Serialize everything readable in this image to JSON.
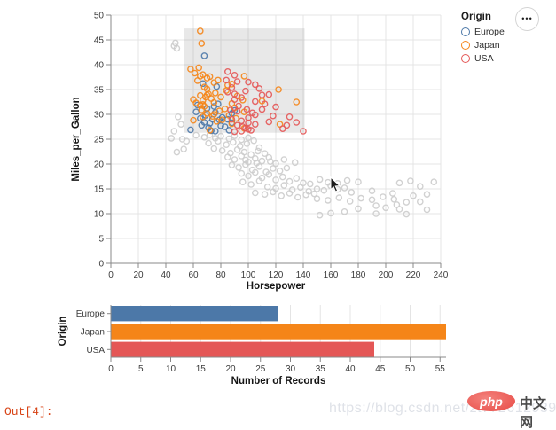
{
  "notebook": {
    "out_prompt": "Out[4]:"
  },
  "legend": {
    "title": "Origin",
    "items": [
      {
        "label": "Europe",
        "color": "#4c78a8"
      },
      {
        "label": "Japan",
        "color": "#f58518"
      },
      {
        "label": "USA",
        "color": "#e45756"
      }
    ]
  },
  "actions_button": {
    "glyph": "•••"
  },
  "watermark": {
    "url": "https://blog.csdn.net/zt772612939",
    "logo_text": "php",
    "site_text": "中文网"
  },
  "colors": {
    "europe": "#4c78a8",
    "japan": "#f58518",
    "usa": "#e45756",
    "unselected": "#cccccc",
    "grid": "#e4e4e4",
    "axis": "#888888",
    "brush_fill": "rgba(128,128,128,0.18)"
  },
  "chart_data": [
    {
      "type": "scatter",
      "xlabel": "Horsepower",
      "ylabel": "Miles_per_Gallon",
      "xlim": [
        0,
        240
      ],
      "ylim": [
        0,
        50
      ],
      "xticks": [
        0,
        20,
        40,
        60,
        80,
        100,
        120,
        140,
        160,
        180,
        200,
        220,
        240
      ],
      "yticks": [
        0,
        5,
        10,
        15,
        20,
        25,
        30,
        35,
        40,
        45,
        50
      ],
      "grid": true,
      "legend_position": "top-right",
      "brush_selection": {
        "x": [
          53,
          141
        ],
        "y": [
          26.3,
          47.3
        ]
      },
      "series": [
        {
          "name": "unselected",
          "color": "#cccccc",
          "points": [
            [
              46,
              43.8
            ],
            [
              47,
              44.4
            ],
            [
              48,
              43.3
            ],
            [
              46,
              26.6
            ],
            [
              44,
              25.2
            ],
            [
              52,
              25.0
            ],
            [
              55,
              24.6
            ],
            [
              48,
              22.4
            ],
            [
              53,
              23.0
            ],
            [
              51,
              28.0
            ],
            [
              49,
              29.5
            ],
            [
              62,
              25.8
            ],
            [
              68,
              25.4
            ],
            [
              72,
              25.9
            ],
            [
              76,
              25.2
            ],
            [
              80,
              25.6
            ],
            [
              86,
              25.1
            ],
            [
              90,
              25.7
            ],
            [
              95,
              24.9
            ],
            [
              100,
              25.3
            ],
            [
              71,
              24.2
            ],
            [
              78,
              24.6
            ],
            [
              84,
              23.9
            ],
            [
              89,
              24.4
            ],
            [
              94,
              23.6
            ],
            [
              99,
              24.1
            ],
            [
              104,
              24.7
            ],
            [
              108,
              23.3
            ],
            [
              75,
              23.1
            ],
            [
              81,
              22.7
            ],
            [
              87,
              22.2
            ],
            [
              92,
              22.9
            ],
            [
              97,
              22.4
            ],
            [
              102,
              21.9
            ],
            [
              107,
              22.6
            ],
            [
              112,
              22.1
            ],
            [
              85,
              21.4
            ],
            [
              90,
              20.9
            ],
            [
              95,
              21.6
            ],
            [
              100,
              20.4
            ],
            [
              105,
              21.1
            ],
            [
              110,
              20.6
            ],
            [
              115,
              21.3
            ],
            [
              120,
              20.1
            ],
            [
              88,
              19.8
            ],
            [
              93,
              19.3
            ],
            [
              98,
              19.9
            ],
            [
              103,
              18.8
            ],
            [
              108,
              19.5
            ],
            [
              113,
              18.4
            ],
            [
              118,
              19.1
            ],
            [
              123,
              18.6
            ],
            [
              128,
              19.2
            ],
            [
              95,
              18.1
            ],
            [
              100,
              17.6
            ],
            [
              105,
              18.3
            ],
            [
              110,
              17.2
            ],
            [
              115,
              17.9
            ],
            [
              120,
              16.8
            ],
            [
              125,
              17.4
            ],
            [
              130,
              16.5
            ],
            [
              135,
              17.1
            ],
            [
              140,
              16.2
            ],
            [
              96,
              16.4
            ],
            [
              102,
              15.9
            ],
            [
              108,
              16.6
            ],
            [
              114,
              15.4
            ],
            [
              120,
              15.1
            ],
            [
              126,
              15.7
            ],
            [
              132,
              14.8
            ],
            [
              138,
              15.3
            ],
            [
              144,
              14.5
            ],
            [
              150,
              15.0
            ],
            [
              105,
              14.2
            ],
            [
              112,
              13.9
            ],
            [
              118,
              14.4
            ],
            [
              124,
              13.6
            ],
            [
              130,
              14.1
            ],
            [
              136,
              13.3
            ],
            [
              142,
              13.8
            ],
            [
              148,
              14.0
            ],
            [
              98,
              20.8
            ],
            [
              106,
              20.2
            ],
            [
              116,
              20.5
            ],
            [
              126,
              20.9
            ],
            [
              134,
              20.3
            ],
            [
              145,
              16.0
            ],
            [
              152,
              16.9
            ],
            [
              158,
              16.3
            ],
            [
              155,
              14.7
            ],
            [
              160,
              15.6
            ],
            [
              165,
              14.9
            ],
            [
              170,
              15.2
            ],
            [
              175,
              14.3
            ],
            [
              165,
              16.1
            ],
            [
              172,
              16.7
            ],
            [
              180,
              16.4
            ],
            [
              150,
              13.0
            ],
            [
              158,
              12.7
            ],
            [
              166,
              13.2
            ],
            [
              174,
              12.5
            ],
            [
              182,
              13.1
            ],
            [
              190,
              12.8
            ],
            [
              198,
              13.4
            ],
            [
              206,
              12.9
            ],
            [
              193,
              11.6
            ],
            [
              200,
              11.2
            ],
            [
              208,
              11.8
            ],
            [
              215,
              12.3
            ],
            [
              220,
              13.6
            ],
            [
              225,
              12.4
            ],
            [
              230,
              13.9
            ],
            [
              235,
              16.4
            ],
            [
              210,
              16.2
            ],
            [
              218,
              16.6
            ],
            [
              205,
              14.1
            ],
            [
              190,
              14.6
            ],
            [
              180,
              11.0
            ],
            [
              170,
              10.4
            ],
            [
              160,
              10.1
            ],
            [
              152,
              9.7
            ],
            [
              210,
              10.9
            ],
            [
              193,
              10.0
            ],
            [
              225,
              15.5
            ],
            [
              230,
              10.8
            ],
            [
              215,
              9.9
            ]
          ]
        },
        {
          "name": "Europe",
          "color": "#4c78a8",
          "points": [
            [
              68,
              41.8
            ],
            [
              67,
              36.2
            ],
            [
              77,
              35.6
            ],
            [
              63,
              31.9
            ],
            [
              70,
              31.2
            ],
            [
              76,
              30.4
            ],
            [
              65,
              29.2
            ],
            [
              68,
              28.4
            ],
            [
              88,
              28.3
            ],
            [
              80,
              27.7
            ],
            [
              58,
              26.9
            ],
            [
              76,
              26.6
            ],
            [
              90,
              30.8
            ],
            [
              88,
              30.2
            ],
            [
              85,
              29.0
            ],
            [
              71,
              27.3
            ],
            [
              78,
              32.1
            ],
            [
              69,
              29.8
            ],
            [
              74,
              29.0
            ],
            [
              72,
              28.2
            ],
            [
              66,
              27.8
            ],
            [
              79,
              28.9
            ],
            [
              83,
              27.5
            ],
            [
              62,
              30.5
            ],
            [
              73,
              26.7
            ],
            [
              86,
              26.8
            ],
            [
              81,
              29.4
            ],
            [
              75,
              31.6
            ]
          ]
        },
        {
          "name": "Japan",
          "color": "#f58518",
          "points": [
            [
              65,
              46.8
            ],
            [
              66,
              44.3
            ],
            [
              58,
              39.1
            ],
            [
              61,
              38.3
            ],
            [
              64,
              39.4
            ],
            [
              65,
              37.7
            ],
            [
              67,
              38.0
            ],
            [
              70,
              37.3
            ],
            [
              88,
              36.1
            ],
            [
              97,
              37.7
            ],
            [
              75,
              36.4
            ],
            [
              70,
              35.1
            ],
            [
              71,
              34.1
            ],
            [
              65,
              33.8
            ],
            [
              69,
              33.5
            ],
            [
              60,
              33.0
            ],
            [
              67,
              32.8
            ],
            [
              75,
              32.4
            ],
            [
              88,
              32.2
            ],
            [
              92,
              33.7
            ],
            [
              96,
              32.9
            ],
            [
              67,
              32.0
            ],
            [
              65,
              31.8
            ],
            [
              68,
              31.6
            ],
            [
              90,
              31.3
            ],
            [
              97,
              30.5
            ],
            [
              75,
              30.0
            ],
            [
              67,
              29.5
            ],
            [
              60,
              28.8
            ],
            [
              88,
              28.1
            ],
            [
              97,
              27.2
            ],
            [
              72,
              26.8
            ],
            [
              110,
              32.7
            ],
            [
              122,
              35.0
            ],
            [
              135,
              32.5
            ],
            [
              123,
              28.0
            ],
            [
              70,
              33.9
            ],
            [
              73,
              33.2
            ],
            [
              76,
              34.3
            ],
            [
              80,
              33.5
            ],
            [
              84,
              34.8
            ],
            [
              68,
              35.5
            ],
            [
              63,
              36.8
            ],
            [
              72,
              37.6
            ],
            [
              78,
              36.9
            ],
            [
              85,
              35.9
            ],
            [
              66,
              30.9
            ],
            [
              70,
              30.2
            ],
            [
              74,
              29.6
            ],
            [
              79,
              30.7
            ],
            [
              83,
              31.1
            ],
            [
              62,
              32.3
            ],
            [
              77,
              28.6
            ],
            [
              81,
              28.9
            ],
            [
              86,
              29.8
            ],
            [
              91,
              29.2
            ]
          ]
        },
        {
          "name": "USA",
          "color": "#e45756",
          "points": [
            [
              85,
              38.6
            ],
            [
              90,
              37.9
            ],
            [
              92,
              36.6
            ],
            [
              100,
              36.5
            ],
            [
              105,
              36.0
            ],
            [
              88,
              35.4
            ],
            [
              85,
              34.5
            ],
            [
              90,
              34.1
            ],
            [
              110,
              33.9
            ],
            [
              115,
              34.0
            ],
            [
              90,
              33.0
            ],
            [
              105,
              32.6
            ],
            [
              120,
              31.5
            ],
            [
              110,
              31.0
            ],
            [
              92,
              30.6
            ],
            [
              105,
              29.9
            ],
            [
              100,
              29.3
            ],
            [
              88,
              29.0
            ],
            [
              95,
              28.7
            ],
            [
              100,
              28.3
            ],
            [
              105,
              28.0
            ],
            [
              92,
              27.8
            ],
            [
              96,
              27.5
            ],
            [
              98,
              27.2
            ],
            [
              100,
              27.0
            ],
            [
              102,
              26.8
            ],
            [
              95,
              26.6
            ],
            [
              90,
              26.5
            ],
            [
              130,
              29.5
            ],
            [
              140,
              26.6
            ],
            [
              125,
              27.1
            ],
            [
              115,
              28.5
            ],
            [
              84,
              36.9
            ],
            [
              95,
              33.4
            ],
            [
              98,
              34.7
            ],
            [
              108,
              35.2
            ],
            [
              112,
              32.1
            ],
            [
              118,
              29.7
            ],
            [
              128,
              27.8
            ],
            [
              135,
              28.4
            ],
            [
              93,
              31.7
            ],
            [
              99,
              31.0
            ],
            [
              103,
              30.3
            ],
            [
              87,
              30.9
            ]
          ]
        }
      ]
    },
    {
      "type": "bar",
      "orientation": "horizontal",
      "categories": [
        "Europe",
        "Japan",
        "USA"
      ],
      "values": [
        28,
        56,
        44
      ],
      "colors": [
        "#4c78a8",
        "#f58518",
        "#e45756"
      ],
      "xlabel": "Number of Records",
      "ylabel": "Origin",
      "xlim": [
        0,
        56
      ],
      "xticks": [
        0,
        5,
        10,
        15,
        20,
        25,
        30,
        35,
        40,
        45,
        50,
        55
      ],
      "grid": true
    }
  ]
}
